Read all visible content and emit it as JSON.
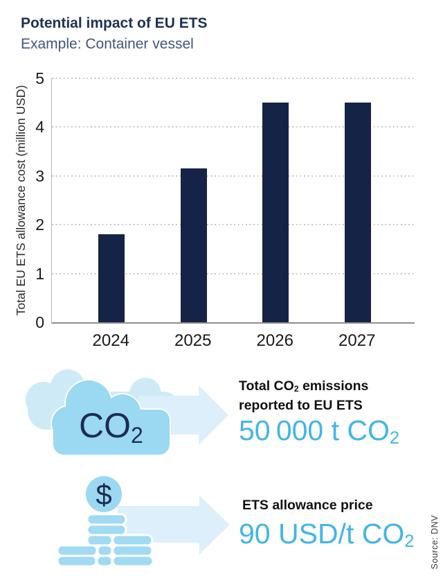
{
  "title": "Potential impact of EU ETS",
  "subtitle": "Example: Container vessel",
  "chart_data": {
    "type": "bar",
    "categories": [
      "2024",
      "2025",
      "2026",
      "2027"
    ],
    "values": [
      1.8,
      3.15,
      4.5,
      4.5
    ],
    "title": "",
    "xlabel": "",
    "ylabel": "Total EU ETS allowance cost (million USD)",
    "ylim": [
      0,
      5
    ],
    "yticks": [
      0,
      1,
      2,
      3,
      4,
      5
    ],
    "bar_color": "#152347",
    "grid": "horizontal dotted gridlines at each integer tick",
    "legend": "none"
  },
  "emissions": {
    "icon": "co2-cloud-icon",
    "arrow_icon": "arrow-right-icon",
    "cloud_label_main": "CO",
    "cloud_label_sub": "2",
    "heading_line1_pre": "Total CO",
    "heading_line1_sub": "2",
    "heading_line1_post": " emissions",
    "heading_line2": "reported to EU ETS",
    "value_main": "50 000 t CO",
    "value_sub": "2"
  },
  "price": {
    "icon": "coins-money-stack-icon",
    "arrow_icon": "arrow-right-icon",
    "coin_symbol": "$",
    "heading": "ETS allowance price",
    "value_main": "90 USD/t CO",
    "value_sub": "2"
  },
  "source": "Source: DNV",
  "colors": {
    "bar_navy": "#152347",
    "title_navy": "#1d3056",
    "subtitle_slate": "#42567c",
    "accent_blue": "#41b5e8",
    "sky_blue": "#9bd8f2",
    "coin_blue": "#a0daf3",
    "back_cloud_blue": "#cfeaf7",
    "arrow_pale_blue": "#ddeffb",
    "dark_text": "#1b2d50"
  }
}
